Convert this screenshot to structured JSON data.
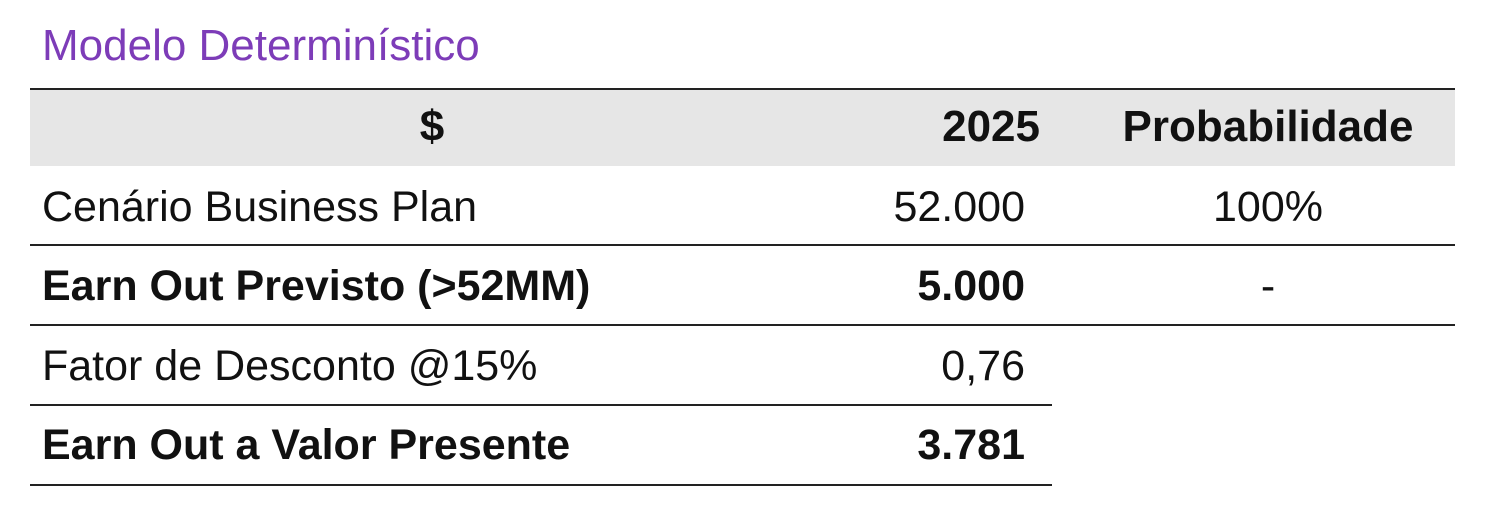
{
  "title": "Modelo Determinístico",
  "table": {
    "header": [
      "$",
      "2025",
      "Probabilidade"
    ],
    "rows": [
      [
        "Cenário Business Plan",
        "52.000",
        "100%"
      ],
      [
        "Earn Out Previsto (>52MM)",
        "5.000",
        "-"
      ],
      [
        "Fator de Desconto @15%",
        "0,76"
      ],
      [
        "Earn Out a Valor Presente",
        "3.781"
      ]
    ]
  }
}
